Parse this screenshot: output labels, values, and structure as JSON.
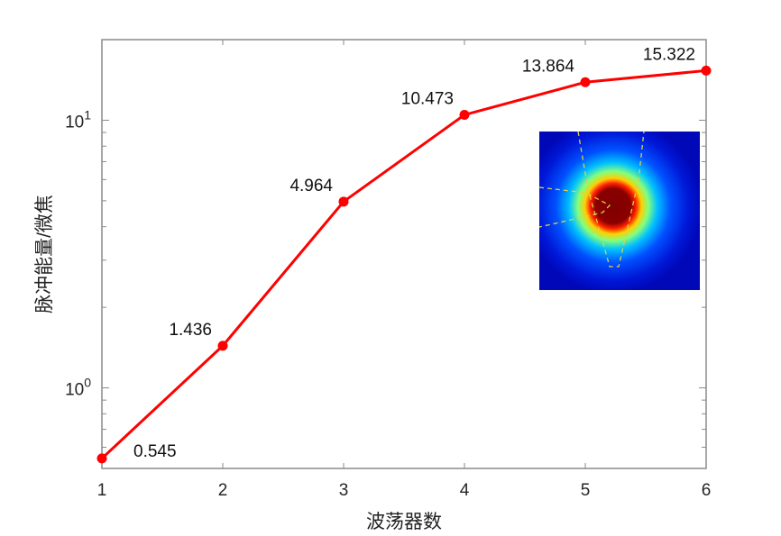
{
  "chart_data": {
    "type": "line",
    "title": "",
    "xlabel": "波荡器数",
    "ylabel": "脉冲能量/微焦",
    "x": [
      1,
      2,
      3,
      4,
      5,
      6
    ],
    "values": [
      0.545,
      1.436,
      4.964,
      10.473,
      13.864,
      15.322
    ],
    "data_labels": [
      "0.545",
      "1.436",
      "4.964",
      "10.473",
      "13.864",
      "15.322"
    ],
    "xticks": [
      "1",
      "2",
      "3",
      "4",
      "5",
      "6"
    ],
    "yticks": [
      {
        "base": "10",
        "exp": "0",
        "value": 1
      },
      {
        "base": "10",
        "exp": "1",
        "value": 10
      }
    ],
    "xlim": [
      1,
      6
    ],
    "ylim": [
      0.5,
      20
    ],
    "yscale": "log",
    "grid": false,
    "line_color": "#ff0000",
    "marker": "filled-circle",
    "inset": "beam-profile-heatmap (jet colormap)"
  }
}
